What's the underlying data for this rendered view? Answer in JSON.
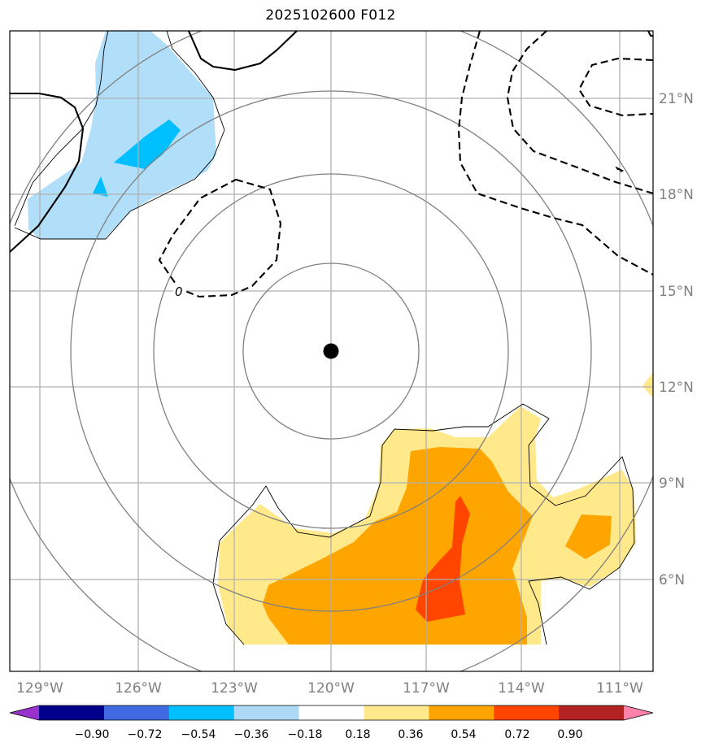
{
  "title": "2025102600 F012",
  "lon_labels": [
    "129°W",
    "126°W",
    "123°W",
    "120°W",
    "117°W",
    "114°W",
    "111°W"
  ],
  "lat_labels": [
    "21°N",
    "18°N",
    "15°N",
    "12°N",
    "9°N",
    "6°N"
  ],
  "contour_label": "0",
  "colorbar": {
    "tick_labels": [
      "−0.90",
      "−0.72",
      "−0.54",
      "−0.36",
      "−0.18",
      "0.18",
      "0.36",
      "0.54",
      "0.72",
      "0.90"
    ],
    "colors": [
      "#9932cc",
      "#00008b",
      "#4169e1",
      "#00bfff",
      "#add8f6",
      "#ffffff",
      "#ffe98a",
      "#ffa500",
      "#ff4500",
      "#b22222",
      "#ff82ab"
    ]
  },
  "colors": {
    "grid": "#b0b0b0",
    "range_rings": "#808080",
    "coastline": "#000000",
    "center_marker": "#000000"
  },
  "center_marker": "storm-center"
}
